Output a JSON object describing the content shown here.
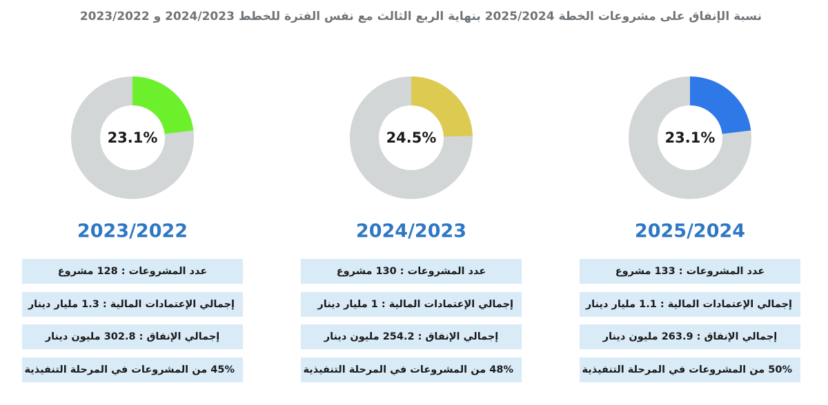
{
  "title": "نسبة الإنفاق على مشروعات الخطة 2025/2024 بنهاية الربع الثالث مع نفس الفترة للخطط 2024/2023 و 2023/2022",
  "colors": {
    "track": "#d3d6d6",
    "year_text": "#2f78c4",
    "row_bg": "#d8ebf7"
  },
  "chart_data": [
    {
      "type": "pie",
      "year": "2023/2022",
      "value_pct": 23.1,
      "label": "23.1%",
      "color": "#6cf02c",
      "rows": [
        "عدد المشروعات : 128 مشروع",
        "إجمالي الإعتمادات المالية : 1.3 مليار دينار",
        "إجمالي الإنفاق : 302.8 مليون دينار",
        "45% من المشروعات في المرحلة التنفيذية"
      ]
    },
    {
      "type": "pie",
      "year": "2024/2023",
      "value_pct": 24.5,
      "label": "24.5%",
      "color": "#dccb50",
      "rows": [
        "عدد المشروعات : 130 مشروع",
        "إجمالي الإعتمادات المالية : 1 مليار دينار",
        "إجمالي الإنفاق : 254.2 مليون دينار",
        "48% من المشروعات في المرحلة التنفيذية"
      ]
    },
    {
      "type": "pie",
      "year": "2025/2024",
      "value_pct": 23.1,
      "label": "23.1%",
      "color": "#2f78e8",
      "rows": [
        "عدد المشروعات : 133 مشروع",
        "إجمالي الإعتمادات المالية : 1.1 مليار دينار",
        "إجمالي الإنفاق : 263.9 مليون دينار",
        "50% من المشروعات في المرحلة التنفيذية"
      ]
    }
  ]
}
